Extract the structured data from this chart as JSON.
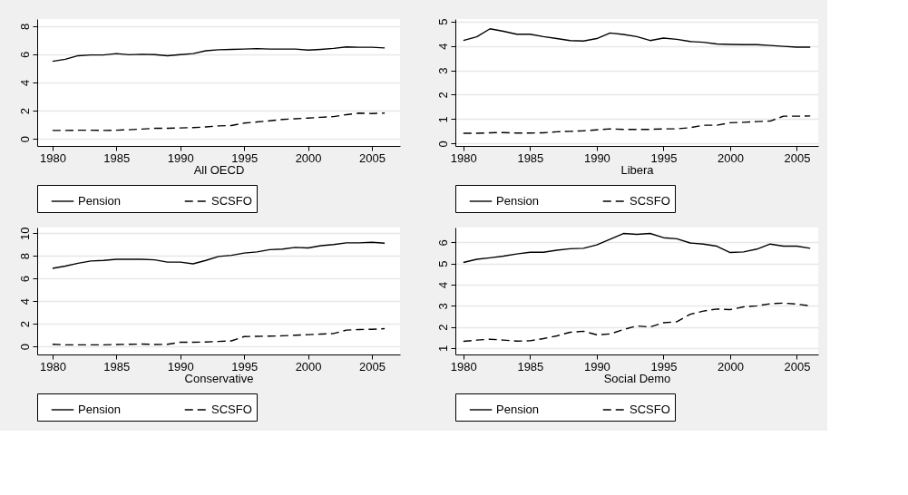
{
  "chart_data": [
    {
      "type": "line",
      "xlabel": "All OECD",
      "x": [
        1980,
        1981,
        1982,
        1983,
        1984,
        1985,
        1986,
        1987,
        1988,
        1989,
        1990,
        1991,
        1992,
        1993,
        1994,
        1995,
        1996,
        1997,
        1998,
        1999,
        2000,
        2001,
        2002,
        2003,
        2004,
        2005,
        2006
      ],
      "xlim": [
        1978.8,
        2007.2
      ],
      "xticks": [
        1980,
        1985,
        1990,
        1995,
        2000,
        2005
      ],
      "ylim": [
        -0.5,
        8.5
      ],
      "yticks": [
        0,
        2,
        4,
        6,
        8
      ],
      "grid": "y",
      "legend": "bottom",
      "series": [
        {
          "name": "Pension",
          "color": "#000000",
          "line_style": "solid",
          "values": [
            5.5,
            5.65,
            5.9,
            5.95,
            5.95,
            6.05,
            5.97,
            6.0,
            5.98,
            5.9,
            5.98,
            6.05,
            6.25,
            6.32,
            6.35,
            6.37,
            6.4,
            6.37,
            6.37,
            6.37,
            6.3,
            6.35,
            6.42,
            6.52,
            6.5,
            6.5,
            6.45
          ]
        },
        {
          "name": "SCSFO",
          "color": "#000000",
          "line_style": "dashed",
          "values": [
            0.6,
            0.6,
            0.62,
            0.62,
            0.6,
            0.62,
            0.65,
            0.7,
            0.75,
            0.75,
            0.78,
            0.8,
            0.85,
            0.92,
            0.95,
            1.12,
            1.2,
            1.28,
            1.38,
            1.43,
            1.48,
            1.53,
            1.58,
            1.72,
            1.83,
            1.8,
            1.83
          ]
        }
      ]
    },
    {
      "type": "line",
      "xlabel": "Libera",
      "x": [
        1980,
        1981,
        1982,
        1983,
        1984,
        1985,
        1986,
        1987,
        1988,
        1989,
        1990,
        1991,
        1992,
        1993,
        1994,
        1995,
        1996,
        1997,
        1998,
        1999,
        2000,
        2001,
        2002,
        2003,
        2004,
        2005,
        2006
      ],
      "xlim": [
        1979.4,
        2006.6
      ],
      "xticks": [
        1980,
        1985,
        1990,
        1995,
        2000,
        2005
      ],
      "ylim": [
        -0.1,
        5.1
      ],
      "yticks": [
        0,
        1,
        2,
        3,
        4,
        5
      ],
      "grid": "y",
      "legend": "bottom",
      "series": [
        {
          "name": "Pension",
          "color": "#000000",
          "line_style": "solid",
          "values": [
            4.22,
            4.37,
            4.7,
            4.6,
            4.48,
            4.48,
            4.38,
            4.3,
            4.22,
            4.2,
            4.3,
            4.53,
            4.47,
            4.38,
            4.22,
            4.32,
            4.27,
            4.18,
            4.15,
            4.08,
            4.06,
            4.05,
            4.05,
            4.02,
            3.98,
            3.95,
            3.95
          ]
        },
        {
          "name": "SCSFO",
          "color": "#000000",
          "line_style": "dashed",
          "values": [
            0.42,
            0.42,
            0.44,
            0.45,
            0.43,
            0.43,
            0.44,
            0.48,
            0.5,
            0.52,
            0.56,
            0.6,
            0.58,
            0.58,
            0.58,
            0.6,
            0.6,
            0.65,
            0.75,
            0.75,
            0.85,
            0.87,
            0.9,
            0.92,
            1.12,
            1.12,
            1.13
          ]
        }
      ]
    },
    {
      "type": "line",
      "xlabel": "Conservative",
      "x": [
        1980,
        1981,
        1982,
        1983,
        1984,
        1985,
        1986,
        1987,
        1988,
        1989,
        1990,
        1991,
        1992,
        1993,
        1994,
        1995,
        1996,
        1997,
        1998,
        1999,
        2000,
        2001,
        2002,
        2003,
        2004,
        2005,
        2006
      ],
      "xlim": [
        1978.8,
        2007.2
      ],
      "xticks": [
        1980,
        1985,
        1990,
        1995,
        2000,
        2005
      ],
      "ylim": [
        -0.7,
        10.5
      ],
      "yticks": [
        0,
        2,
        4,
        6,
        8,
        10
      ],
      "grid": "y",
      "legend": "bottom",
      "series": [
        {
          "name": "Pension",
          "color": "#000000",
          "line_style": "solid",
          "values": [
            6.9,
            7.1,
            7.35,
            7.55,
            7.6,
            7.7,
            7.7,
            7.7,
            7.65,
            7.45,
            7.45,
            7.3,
            7.6,
            7.95,
            8.05,
            8.25,
            8.35,
            8.55,
            8.6,
            8.75,
            8.7,
            8.9,
            9.0,
            9.15,
            9.15,
            9.2,
            9.12
          ]
        },
        {
          "name": "SCSFO",
          "color": "#000000",
          "line_style": "dashed",
          "values": [
            0.2,
            0.15,
            0.15,
            0.15,
            0.15,
            0.18,
            0.2,
            0.22,
            0.18,
            0.2,
            0.38,
            0.38,
            0.4,
            0.45,
            0.5,
            0.88,
            0.9,
            0.92,
            0.95,
            1.0,
            1.05,
            1.1,
            1.15,
            1.45,
            1.5,
            1.52,
            1.58
          ]
        }
      ]
    },
    {
      "type": "line",
      "xlabel": "Social Demo",
      "x": [
        1980,
        1981,
        1982,
        1983,
        1984,
        1985,
        1986,
        1987,
        1988,
        1989,
        1990,
        1991,
        1992,
        1993,
        1994,
        1995,
        1996,
        1997,
        1998,
        1999,
        2000,
        2001,
        2002,
        2003,
        2004,
        2005,
        2006
      ],
      "xlim": [
        1979.4,
        2006.6
      ],
      "xticks": [
        1980,
        1985,
        1990,
        1995,
        2000,
        2005
      ],
      "ylim": [
        0.7,
        6.7
      ],
      "yticks": [
        1,
        2,
        3,
        4,
        5,
        6
      ],
      "grid": "y",
      "legend": "bottom",
      "series": [
        {
          "name": "Pension",
          "color": "#000000",
          "line_style": "solid",
          "values": [
            5.05,
            5.2,
            5.27,
            5.35,
            5.45,
            5.53,
            5.53,
            5.63,
            5.7,
            5.72,
            5.88,
            6.15,
            6.42,
            6.38,
            6.42,
            6.22,
            6.17,
            5.97,
            5.92,
            5.82,
            5.52,
            5.55,
            5.68,
            5.92,
            5.82,
            5.82,
            5.72
          ]
        },
        {
          "name": "SCSFO",
          "color": "#000000",
          "line_style": "dashed",
          "values": [
            1.32,
            1.38,
            1.42,
            1.38,
            1.33,
            1.35,
            1.45,
            1.58,
            1.75,
            1.8,
            1.63,
            1.67,
            1.88,
            2.05,
            2.0,
            2.2,
            2.25,
            2.6,
            2.75,
            2.85,
            2.82,
            2.95,
            3.0,
            3.1,
            3.13,
            3.08,
            3.0
          ]
        }
      ]
    }
  ]
}
